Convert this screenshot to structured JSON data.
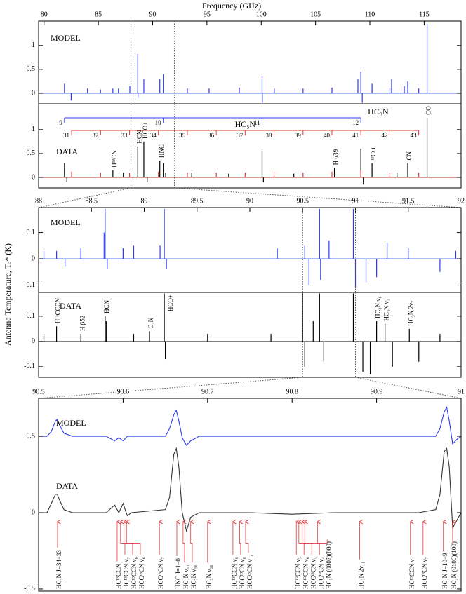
{
  "chart_data": [
    {
      "type": "stick",
      "xlabel": "Frequency (GHz)",
      "texts": [
        "MODEL"
      ],
      "xlim": [
        79.5,
        118.4
      ],
      "xticks": [
        80,
        85,
        90,
        95,
        100,
        105,
        110,
        115
      ],
      "ylim": [
        -0.22,
        1.51
      ],
      "yticks": [
        0,
        0.5,
        1
      ],
      "zoom": [
        88,
        92
      ],
      "series": [
        {
          "color": "#2b3cf0",
          "x": [
            81.88,
            82.5,
            84.0,
            85.2,
            86.34,
            86.85,
            87.9,
            88.63,
            88.65,
            89.19,
            90.66,
            90.98,
            93.2,
            95.2,
            97.98,
            100.08,
            100.1,
            101.2,
            103.85,
            106.51,
            108.9,
            109.17,
            109.3,
            110.2,
            111.84,
            112.0,
            113.17,
            113.49,
            114.5,
            115.27
          ],
          "values": [
            0.2,
            -0.15,
            0.1,
            0.08,
            0.1,
            0.1,
            0.15,
            0.82,
            -0.1,
            0.3,
            0.3,
            0.4,
            0.1,
            0.1,
            0.12,
            0.35,
            -0.2,
            0.1,
            0.1,
            0.12,
            0.3,
            0.45,
            -0.2,
            0.2,
            0.1,
            0.3,
            0.15,
            0.25,
            0.1,
            1.45
          ]
        }
      ]
    },
    {
      "type": "stick",
      "texts": [
        "DATA"
      ],
      "xlim": [
        79.5,
        118.4
      ],
      "ylim": [
        -0.22,
        1.54
      ],
      "yticks": [
        0,
        0.5,
        1
      ],
      "zoom": [
        88,
        92
      ],
      "series": [
        {
          "color": "#000000",
          "x": [
            81.88,
            82.1,
            86.34,
            87.3,
            88.63,
            89.19,
            89.5,
            90.66,
            90.98,
            91.2,
            93.6,
            97.0,
            100.08,
            100.2,
            103.0,
            106.74,
            109.17,
            109.4,
            110.2,
            112.5,
            113.49,
            115.27
          ],
          "values": [
            0.3,
            -0.1,
            0.15,
            0.1,
            0.65,
            0.75,
            -0.1,
            0.35,
            0.3,
            0.1,
            0.1,
            0.08,
            0.6,
            -0.1,
            0.08,
            0.2,
            0.6,
            -0.15,
            0.3,
            0.1,
            0.3,
            1.25
          ]
        },
        {
          "color": "#e8363a",
          "x": [
            82.54,
            85.21,
            87.87,
            90.53,
            93.2,
            95.86,
            98.52,
            101.18,
            103.85,
            106.51,
            109.17,
            111.84,
            114.5
          ],
          "values": [
            0.12,
            0.1,
            0.1,
            0.12,
            0.1,
            0.1,
            0.1,
            0.12,
            0.1,
            0.12,
            0.15,
            0.1,
            0.1
          ]
        }
      ],
      "labels": [
        {
          "label": "H¹³CN",
          "x": 86.34
        },
        {
          "label": "HCN",
          "x": 88.63
        },
        {
          "label": "HCO+",
          "x": 89.19
        },
        {
          "label": "HNC",
          "x": 90.66
        },
        {
          "label": "H α39",
          "x": 106.74
        },
        {
          "label": "¹³CO",
          "x": 110.2
        },
        {
          "label": "CN",
          "x": 113.49
        },
        {
          "label": "CO",
          "x": 115.27
        }
      ],
      "ladders": [
        {
          "label": "HC₃N",
          "color": "#2b3cf0",
          "lines": [
            {
              "label": "9",
              "x": 81.88
            },
            {
              "label": "10",
              "x": 90.98
            },
            {
              "label": "11",
              "x": 100.08
            },
            {
              "label": "12",
              "x": 109.17
            }
          ]
        },
        {
          "label": "HC₅N",
          "color": "#e8363a",
          "lines": [
            {
              "label": "31",
              "x": 82.54
            },
            {
              "label": "32",
              "x": 85.21
            },
            {
              "label": "33",
              "x": 87.87
            },
            {
              "label": "34",
              "x": 90.53
            },
            {
              "label": "35",
              "x": 93.2
            },
            {
              "label": "36",
              "x": 95.86
            },
            {
              "label": "37",
              "x": 98.52
            },
            {
              "label": "38",
              "x": 101.18
            },
            {
              "label": "39",
              "x": 103.85
            },
            {
              "label": "40",
              "x": 106.51
            },
            {
              "label": "41",
              "x": 109.17
            },
            {
              "label": "42",
              "x": 111.84
            },
            {
              "label": "43",
              "x": 114.5
            }
          ]
        }
      ]
    },
    {
      "type": "stick",
      "ylabel": "Antenne Temperature, Tₐ* (K)",
      "texts": [
        "MODEL"
      ],
      "xlim": [
        88,
        92
      ],
      "xticks": [
        88,
        88.5,
        89,
        89.5,
        90,
        90.5,
        91,
        91.5,
        92
      ],
      "ylim": [
        -0.128,
        0.195
      ],
      "yticks": [
        -0.1,
        0,
        0.1
      ],
      "zoom": [
        90.5,
        91
      ],
      "series": [
        {
          "color": "#2b3cf0",
          "x": [
            88.05,
            88.17,
            88.25,
            88.4,
            88.62,
            88.63,
            88.65,
            88.8,
            88.9,
            89.15,
            89.19,
            89.21,
            90.26,
            90.52,
            90.56,
            90.66,
            90.67,
            90.75,
            90.98,
            91.0,
            91.1,
            91.2,
            91.3,
            91.5,
            91.8,
            91.95
          ],
          "values": [
            0.03,
            0.03,
            -0.03,
            0.04,
            0.1,
            0.19,
            -0.04,
            0.04,
            0.05,
            0.05,
            0.19,
            -0.04,
            0.04,
            0.05,
            -0.1,
            0.19,
            -0.08,
            0.07,
            0.19,
            -0.11,
            -0.09,
            -0.07,
            0.06,
            0.04,
            -0.05,
            0.03
          ]
        }
      ]
    },
    {
      "type": "stick",
      "texts": [
        "DATA"
      ],
      "xlim": [
        88,
        92
      ],
      "ylim": [
        -0.142,
        0.194
      ],
      "yticks": [
        -0.1,
        0,
        0.1
      ],
      "zoom": [
        90.5,
        91
      ],
      "series": [
        {
          "color": "#000000",
          "x": [
            88.05,
            88.17,
            88.4,
            88.63,
            88.64,
            88.9,
            89.05,
            89.19,
            89.2,
            89.6,
            90.2,
            90.5,
            90.52,
            90.6,
            90.66,
            90.7,
            90.98,
            91.07,
            91.14,
            91.2,
            91.28,
            91.35,
            91.51,
            91.6,
            91.8
          ],
          "values": [
            0.03,
            0.06,
            0.03,
            0.1,
            0.08,
            0.03,
            0.04,
            0.19,
            -0.07,
            0.03,
            0.03,
            0.19,
            -0.1,
            0.08,
            0.19,
            -0.08,
            0.19,
            -0.12,
            -0.13,
            0.08,
            0.07,
            -0.1,
            0.05,
            -0.08,
            0.03
          ]
        }
      ],
      "labels": [
        {
          "label": "H¹³CCCN",
          "x": 88.17
        },
        {
          "label": "H β52",
          "x": 88.4
        },
        {
          "label": "HCN",
          "x": 88.63
        },
        {
          "label": "C₃N",
          "x": 89.05
        },
        {
          "label": "HCO+",
          "x": 89.19
        },
        {
          "label": "HC₃N ν₆",
          "x": 91.2
        },
        {
          "label": "HC₃N ν₇",
          "x": 91.28
        },
        {
          "label": "HC₃N 2ν₇",
          "x": 91.51
        }
      ]
    },
    {
      "type": "line",
      "texts": [
        "MODEL",
        "DATA"
      ],
      "xlim": [
        90.5,
        91
      ],
      "xticks": [
        90.5,
        90.6,
        90.7,
        90.8,
        90.9,
        91
      ],
      "ylim": [
        -0.514,
        0.748
      ],
      "yticks": [
        -0.5,
        0,
        0.5
      ],
      "series": [
        {
          "color": "#2b3cf0",
          "x": [
            90.5,
            90.51,
            90.515,
            90.52,
            90.522,
            90.525,
            90.53,
            90.54,
            90.58,
            90.59,
            90.595,
            90.6,
            90.605,
            90.61,
            90.65,
            90.655,
            90.66,
            90.663,
            90.666,
            90.67,
            90.675,
            90.68,
            90.69,
            90.7,
            90.75,
            90.8,
            90.85,
            90.9,
            90.95,
            90.97,
            90.975,
            90.98,
            90.983,
            90.986,
            90.99,
            90.995,
            91.0
          ],
          "values": [
            0.5,
            0.5,
            0.53,
            0.6,
            0.61,
            0.57,
            0.52,
            0.5,
            0.5,
            0.47,
            0.49,
            0.47,
            0.5,
            0.5,
            0.5,
            0.55,
            0.64,
            0.67,
            0.6,
            0.49,
            0.44,
            0.47,
            0.5,
            0.5,
            0.5,
            0.5,
            0.5,
            0.5,
            0.5,
            0.5,
            0.55,
            0.66,
            0.69,
            0.6,
            0.45,
            0.48,
            0.5
          ]
        },
        {
          "color": "#333333",
          "x": [
            90.5,
            90.51,
            90.515,
            90.52,
            90.522,
            90.525,
            90.53,
            90.54,
            90.58,
            90.59,
            90.595,
            90.6,
            90.605,
            90.61,
            90.65,
            90.655,
            90.66,
            90.663,
            90.666,
            90.67,
            90.675,
            90.68,
            90.69,
            90.7,
            90.75,
            90.8,
            90.85,
            90.9,
            90.95,
            90.97,
            90.975,
            90.98,
            90.983,
            90.986,
            90.99,
            90.995,
            91.0
          ],
          "values": [
            0,
            0,
            0.06,
            0.12,
            0.12,
            0.08,
            0.02,
            0,
            0,
            0.05,
            0.0,
            0.06,
            -0.02,
            0,
            0.02,
            0.1,
            0.38,
            0.42,
            0.3,
            0.0,
            -0.12,
            -0.03,
            0,
            0,
            0,
            -0.01,
            0,
            0,
            0,
            0.02,
            0.12,
            0.4,
            0.42,
            0.3,
            -0.1,
            -0.05,
            0
          ]
        }
      ],
      "labels": [
        {
          "label": "HC₅N J=34−33",
          "x": 90.5224
        },
        {
          "label": "HC¹³CCN",
          "x": 90.593
        },
        {
          "label": "HC¹³CCN ν₇",
          "x": 90.597
        },
        {
          "label": "HC¹³CCN ν₆",
          "x": 90.601
        },
        {
          "label": "HCC¹³CN ν₆",
          "x": 90.604
        },
        {
          "label": "HCC¹³CN ν₇",
          "x": 90.643
        },
        {
          "label": "HNC J=1−0",
          "x": 90.6636
        },
        {
          "label": "HC₃N ν₁₁",
          "x": 90.671
        },
        {
          "label": "HC₃N ν₁₀",
          "x": 90.68
        },
        {
          "label": "HC₃N ν₁₀",
          "x": 90.7
        },
        {
          "label": "HC¹³CCN ν₈",
          "x": 90.73
        },
        {
          "label": "HCC¹³CN ν₈",
          "x": 90.738
        },
        {
          "label": "HCC¹³CN ν₁₁",
          "x": 90.745
        },
        {
          "label": "HC¹³CCN ν₅",
          "x": 90.805
        },
        {
          "label": "HC¹³CCN ν₆",
          "x": 90.808
        },
        {
          "label": "HCC¹³CN ν₅",
          "x": 90.812
        },
        {
          "label": "HCC¹³CN ν₄",
          "x": 90.815
        },
        {
          "label": "HC₃N (0002)(000)",
          "x": 90.83
        },
        {
          "label": "HC₃N 2ν₁₁",
          "x": 90.88
        },
        {
          "label": "HC¹³CCN ν₇",
          "x": 90.94
        },
        {
          "label": "HCC¹³CN ν₇",
          "x": 90.955
        },
        {
          "label": "HC₃N J=10−9",
          "x": 90.979
        },
        {
          "label": "HC₃N (0100)(100)",
          "x": 90.99
        }
      ]
    }
  ]
}
